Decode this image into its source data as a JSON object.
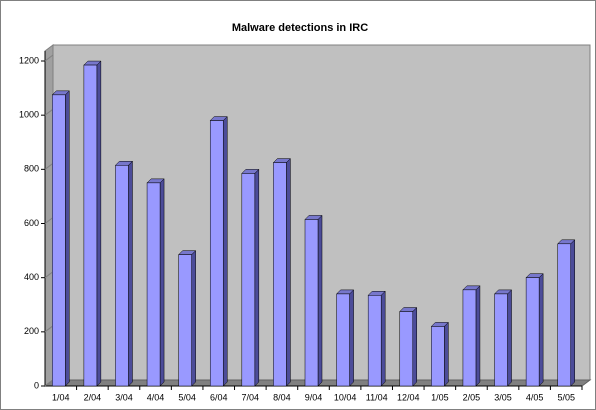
{
  "chart_data": {
    "type": "bar",
    "title": "Malware detections in IRC",
    "categories": [
      "1/04",
      "2/04",
      "3/04",
      "4/04",
      "5/04",
      "6/04",
      "7/04",
      "8/04",
      "9/04",
      "10/04",
      "11/04",
      "12/04",
      "1/05",
      "2/05",
      "3/05",
      "4/05",
      "5/05"
    ],
    "values": [
      1075,
      1185,
      815,
      750,
      485,
      980,
      785,
      825,
      615,
      340,
      335,
      275,
      220,
      355,
      340,
      400,
      525
    ],
    "color": "#9999ff",
    "ylim": [
      0,
      1200
    ],
    "yticks": [
      0,
      200,
      400,
      600,
      800,
      1000,
      1200
    ]
  }
}
